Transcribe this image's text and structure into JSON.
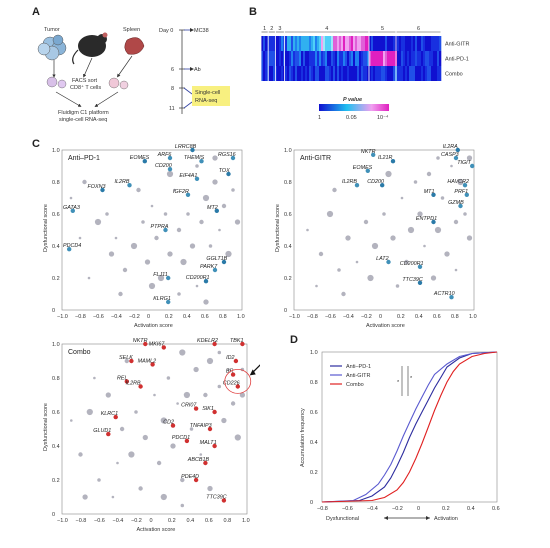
{
  "panel_letters": {
    "a": "A",
    "b": "B",
    "c": "C",
    "d": "D"
  },
  "panelA": {
    "tumor": "Tumor",
    "spleen": "Spleen",
    "facs": "FACS sort",
    "cd8": "CD8⁺ T cells",
    "fluidigm1": "Fluidigm C1 platform",
    "fluidigm2": "single-cell RNA-seq",
    "day0": "Day 0",
    "mc38": "MC38",
    "day6": "6",
    "ab": "Ab",
    "day8": "8",
    "day11": "11",
    "sc1": "Single-cell",
    "sc2": "RNA-seq"
  },
  "panelB": {
    "col_labels": [
      "1",
      "2",
      "3",
      "4",
      "5",
      "6"
    ],
    "rows": [
      "Anti-GITR",
      "Anti-PD-1",
      "Combo"
    ],
    "legend_title": "P value",
    "legend_ticks": [
      "1",
      "0.05",
      "10⁻⁴"
    ]
  },
  "scatter_common": {
    "xlabel": "Activation score",
    "ylabel": "Dysfunctional score",
    "xticks": [
      "−1.0",
      "−0.8",
      "−0.6",
      "−0.4",
      "−0.2",
      "0",
      "0.2",
      "0.4",
      "0.6",
      "0.8",
      "1.0"
    ],
    "yticks": [
      "0",
      "0.2",
      "0.4",
      "0.6",
      "0.8",
      "1.0"
    ]
  },
  "chart_data": [
    {
      "type": "scatter",
      "title": "Anti–PD-1",
      "xlabel": "Activation score",
      "ylabel": "Dysfunctional score",
      "xlim": [
        -1.0,
        1.0
      ],
      "ylim": [
        0,
        1.0
      ],
      "labels": [
        {
          "name": "LRRC8B",
          "x": 0.45,
          "y": 1.0
        },
        {
          "name": "RGS16",
          "x": 0.9,
          "y": 0.95
        },
        {
          "name": "ARF6",
          "x": 0.2,
          "y": 0.95
        },
        {
          "name": "EOMES",
          "x": -0.08,
          "y": 0.93
        },
        {
          "name": "THEMIS",
          "x": 0.55,
          "y": 0.93
        },
        {
          "name": "CD200",
          "x": 0.2,
          "y": 0.88
        },
        {
          "name": "TOX",
          "x": 0.85,
          "y": 0.85
        },
        {
          "name": "EIF4A1",
          "x": 0.5,
          "y": 0.82
        },
        {
          "name": "IL2RB",
          "x": -0.25,
          "y": 0.78
        },
        {
          "name": "FOXN3",
          "x": -0.55,
          "y": 0.75
        },
        {
          "name": "IGF2R",
          "x": 0.4,
          "y": 0.72
        },
        {
          "name": "GATA3",
          "x": -0.88,
          "y": 0.62
        },
        {
          "name": "MT2",
          "x": 0.72,
          "y": 0.62
        },
        {
          "name": "PTPRA",
          "x": 0.15,
          "y": 0.5
        },
        {
          "name": "PDCD4",
          "x": -0.92,
          "y": 0.38
        },
        {
          "name": "GGLT1B",
          "x": 0.8,
          "y": 0.3
        },
        {
          "name": "PARK7",
          "x": 0.7,
          "y": 0.25
        },
        {
          "name": "FLJ11",
          "x": 0.18,
          "y": 0.2
        },
        {
          "name": "CD200R1",
          "x": 0.6,
          "y": 0.18
        },
        {
          "name": "KLRG1",
          "x": 0.18,
          "y": 0.05
        }
      ],
      "points": [
        [
          -0.9,
          0.7
        ],
        [
          -0.75,
          0.8
        ],
        [
          -0.6,
          0.55
        ],
        [
          -0.5,
          0.6
        ],
        [
          -0.45,
          0.35
        ],
        [
          -0.4,
          0.45
        ],
        [
          -0.3,
          0.25
        ],
        [
          -0.2,
          0.4
        ],
        [
          -0.1,
          0.55
        ],
        [
          -0.05,
          0.3
        ],
        [
          0.0,
          0.65
        ],
        [
          0.05,
          0.45
        ],
        [
          0.1,
          0.2
        ],
        [
          0.15,
          0.6
        ],
        [
          0.2,
          0.35
        ],
        [
          0.25,
          0.75
        ],
        [
          0.3,
          0.5
        ],
        [
          0.35,
          0.3
        ],
        [
          0.4,
          0.6
        ],
        [
          0.45,
          0.4
        ],
        [
          0.5,
          0.15
        ],
        [
          0.55,
          0.55
        ],
        [
          0.6,
          0.7
        ],
        [
          0.65,
          0.4
        ],
        [
          0.7,
          0.8
        ],
        [
          0.75,
          0.5
        ],
        [
          0.8,
          0.65
        ],
        [
          0.85,
          0.35
        ],
        [
          0.9,
          0.75
        ],
        [
          0.95,
          0.55
        ],
        [
          -0.7,
          0.2
        ],
        [
          -0.35,
          0.1
        ],
        [
          0.0,
          0.15
        ],
        [
          0.3,
          0.1
        ],
        [
          0.6,
          0.05
        ],
        [
          -0.8,
          0.45
        ],
        [
          -0.15,
          0.75
        ],
        [
          0.2,
          0.85
        ],
        [
          0.5,
          0.9
        ],
        [
          0.7,
          0.95
        ]
      ]
    },
    {
      "type": "scatter",
      "title": "Anti-GITR",
      "xlabel": "Activation score",
      "ylabel": "Dysfunctional score",
      "xlim": [
        -1.0,
        1.0
      ],
      "ylim": [
        0,
        1.0
      ],
      "labels": [
        {
          "name": "IL2RA",
          "x": 0.82,
          "y": 1.0
        },
        {
          "name": "NKTR",
          "x": -0.12,
          "y": 0.97
        },
        {
          "name": "CASP3",
          "x": 0.8,
          "y": 0.95
        },
        {
          "name": "IL21R",
          "x": 0.1,
          "y": 0.93
        },
        {
          "name": "TIGIT",
          "x": 0.98,
          "y": 0.9
        },
        {
          "name": "EOMES",
          "x": -0.18,
          "y": 0.87
        },
        {
          "name": "CD200",
          "x": -0.02,
          "y": 0.78
        },
        {
          "name": "IL2RB",
          "x": -0.3,
          "y": 0.78
        },
        {
          "name": "HAVCR2",
          "x": 0.9,
          "y": 0.78
        },
        {
          "name": "MT1",
          "x": 0.55,
          "y": 0.72
        },
        {
          "name": "PRF1",
          "x": 0.92,
          "y": 0.72
        },
        {
          "name": "GZMB",
          "x": 0.85,
          "y": 0.65
        },
        {
          "name": "ENTPD1",
          "x": 0.55,
          "y": 0.55
        },
        {
          "name": "LAT2",
          "x": 0.05,
          "y": 0.3
        },
        {
          "name": "CD200R1",
          "x": 0.4,
          "y": 0.27
        },
        {
          "name": "TTC39C",
          "x": 0.4,
          "y": 0.17
        },
        {
          "name": "ACTR10",
          "x": 0.75,
          "y": 0.08
        }
      ],
      "points": [
        [
          -0.85,
          0.5
        ],
        [
          -0.7,
          0.35
        ],
        [
          -0.6,
          0.6
        ],
        [
          -0.5,
          0.25
        ],
        [
          -0.4,
          0.45
        ],
        [
          -0.3,
          0.3
        ],
        [
          -0.2,
          0.55
        ],
        [
          -0.1,
          0.4
        ],
        [
          0.0,
          0.6
        ],
        [
          0.1,
          0.45
        ],
        [
          0.2,
          0.7
        ],
        [
          0.25,
          0.3
        ],
        [
          0.3,
          0.5
        ],
        [
          0.35,
          0.8
        ],
        [
          0.4,
          0.6
        ],
        [
          0.45,
          0.4
        ],
        [
          0.5,
          0.85
        ],
        [
          0.6,
          0.5
        ],
        [
          0.65,
          0.7
        ],
        [
          0.7,
          0.35
        ],
        [
          0.75,
          0.9
        ],
        [
          0.8,
          0.55
        ],
        [
          0.85,
          0.8
        ],
        [
          0.9,
          0.6
        ],
        [
          0.95,
          0.45
        ],
        [
          -0.75,
          0.15
        ],
        [
          -0.45,
          0.1
        ],
        [
          -0.15,
          0.2
        ],
        [
          0.15,
          0.15
        ],
        [
          0.55,
          0.2
        ],
        [
          0.8,
          0.25
        ],
        [
          -0.55,
          0.75
        ],
        [
          0.05,
          0.85
        ],
        [
          0.6,
          0.95
        ],
        [
          0.95,
          0.95
        ]
      ]
    },
    {
      "type": "scatter",
      "title": "Combo",
      "xlabel": "Activation score",
      "ylabel": "Dysfunctional score",
      "xlim": [
        -1.0,
        1.0
      ],
      "ylim": [
        0,
        1.0
      ],
      "labels": [
        {
          "name": "NKTR",
          "x": -0.1,
          "y": 1.0
        },
        {
          "name": "MKI67",
          "x": 0.1,
          "y": 0.98
        },
        {
          "name": "KDELR2",
          "x": 0.65,
          "y": 1.0
        },
        {
          "name": "TBK1",
          "x": 0.95,
          "y": 1.0
        },
        {
          "name": "ID2",
          "x": 0.88,
          "y": 0.9
        },
        {
          "name": "SELK",
          "x": -0.25,
          "y": 0.9
        },
        {
          "name": "MAML2",
          "x": -0.02,
          "y": 0.88
        },
        {
          "name": "BR",
          "x": 0.85,
          "y": 0.82
        },
        {
          "name": "REL",
          "x": -0.3,
          "y": 0.78
        },
        {
          "name": "IL2RB",
          "x": -0.15,
          "y": 0.75
        },
        {
          "name": "CD226",
          "x": 0.9,
          "y": 0.75
        },
        {
          "name": "SIK1",
          "x": 0.65,
          "y": 0.6
        },
        {
          "name": "CRI07",
          "x": 0.45,
          "y": 0.62
        },
        {
          "name": "KLRC1",
          "x": -0.42,
          "y": 0.57
        },
        {
          "name": "CD2",
          "x": 0.2,
          "y": 0.52
        },
        {
          "name": "TNFAIP3",
          "x": 0.6,
          "y": 0.5
        },
        {
          "name": "GLUD1",
          "x": -0.5,
          "y": 0.47
        },
        {
          "name": "PDCD1",
          "x": 0.35,
          "y": 0.43
        },
        {
          "name": "MALT1",
          "x": 0.65,
          "y": 0.4
        },
        {
          "name": "ABCB1B",
          "x": 0.55,
          "y": 0.3
        },
        {
          "name": "PDE4D",
          "x": 0.45,
          "y": 0.2
        },
        {
          "name": "TTC39C",
          "x": 0.75,
          "y": 0.08
        }
      ],
      "points": [
        [
          -0.9,
          0.55
        ],
        [
          -0.8,
          0.35
        ],
        [
          -0.7,
          0.6
        ],
        [
          -0.6,
          0.2
        ],
        [
          -0.5,
          0.7
        ],
        [
          -0.4,
          0.3
        ],
        [
          -0.35,
          0.5
        ],
        [
          -0.25,
          0.35
        ],
        [
          -0.2,
          0.6
        ],
        [
          -0.1,
          0.45
        ],
        [
          0.0,
          0.7
        ],
        [
          0.05,
          0.3
        ],
        [
          0.1,
          0.55
        ],
        [
          0.15,
          0.8
        ],
        [
          0.2,
          0.4
        ],
        [
          0.25,
          0.65
        ],
        [
          0.3,
          0.2
        ],
        [
          0.35,
          0.7
        ],
        [
          0.4,
          0.5
        ],
        [
          0.45,
          0.85
        ],
        [
          0.5,
          0.35
        ],
        [
          0.55,
          0.7
        ],
        [
          0.6,
          0.9
        ],
        [
          0.7,
          0.75
        ],
        [
          0.75,
          0.55
        ],
        [
          0.8,
          0.85
        ],
        [
          0.85,
          0.65
        ],
        [
          0.9,
          0.45
        ],
        [
          0.95,
          0.85
        ],
        [
          -0.75,
          0.1
        ],
        [
          -0.45,
          0.1
        ],
        [
          -0.15,
          0.15
        ],
        [
          0.1,
          0.1
        ],
        [
          0.3,
          0.05
        ],
        [
          0.6,
          0.15
        ],
        [
          -0.65,
          0.8
        ],
        [
          -0.3,
          0.9
        ],
        [
          0.3,
          0.95
        ],
        [
          0.7,
          0.95
        ],
        [
          0.95,
          0.7
        ]
      ]
    },
    {
      "type": "line",
      "title": "",
      "xlabel": "Dysfunctional ←—→ Activation",
      "ylabel": "Accumulation frequency",
      "xlim": [
        -0.8,
        0.6
      ],
      "ylim": [
        0,
        1.0
      ],
      "xticks": [
        "−0.8",
        "−0.6",
        "−0.4",
        "−0.2",
        "0",
        "0.2",
        "0.4",
        "0.6"
      ],
      "yticks": [
        "0",
        "0.2",
        "0.4",
        "0.6",
        "0.8",
        "1.0"
      ],
      "legend": "top-left",
      "series": [
        {
          "name": "Anti–PD-1",
          "color": "#2d2d9f",
          "x": [
            -0.8,
            -0.5,
            -0.4,
            -0.3,
            -0.25,
            -0.2,
            -0.15,
            -0.1,
            -0.05,
            0.0,
            0.05,
            0.1,
            0.15,
            0.2,
            0.3,
            0.4,
            0.6
          ],
          "y": [
            0,
            0.01,
            0.04,
            0.1,
            0.16,
            0.24,
            0.33,
            0.43,
            0.52,
            0.6,
            0.68,
            0.76,
            0.83,
            0.9,
            0.96,
            0.99,
            1.0
          ]
        },
        {
          "name": "Anti-GITR",
          "color": "#5a5ad0",
          "x": [
            -0.8,
            -0.55,
            -0.45,
            -0.35,
            -0.3,
            -0.25,
            -0.2,
            -0.15,
            -0.1,
            -0.05,
            0.0,
            0.05,
            0.1,
            0.2,
            0.3,
            0.4,
            0.6
          ],
          "y": [
            0,
            0.01,
            0.05,
            0.12,
            0.18,
            0.25,
            0.34,
            0.44,
            0.53,
            0.62,
            0.7,
            0.78,
            0.85,
            0.92,
            0.97,
            0.99,
            1.0
          ]
        },
        {
          "name": "Combo",
          "color": "#e02020",
          "x": [
            -0.8,
            -0.4,
            -0.3,
            -0.2,
            -0.15,
            -0.1,
            -0.05,
            0.0,
            0.05,
            0.1,
            0.15,
            0.2,
            0.25,
            0.3,
            0.4,
            0.5,
            0.6
          ],
          "y": [
            0,
            0.01,
            0.03,
            0.08,
            0.13,
            0.2,
            0.29,
            0.39,
            0.5,
            0.61,
            0.71,
            0.8,
            0.87,
            0.92,
            0.97,
            0.99,
            1.0
          ]
        }
      ],
      "annotations": [
        "*",
        "*"
      ]
    }
  ],
  "panelD": {
    "dys": "Dysfunctional",
    "act": "Activation"
  }
}
